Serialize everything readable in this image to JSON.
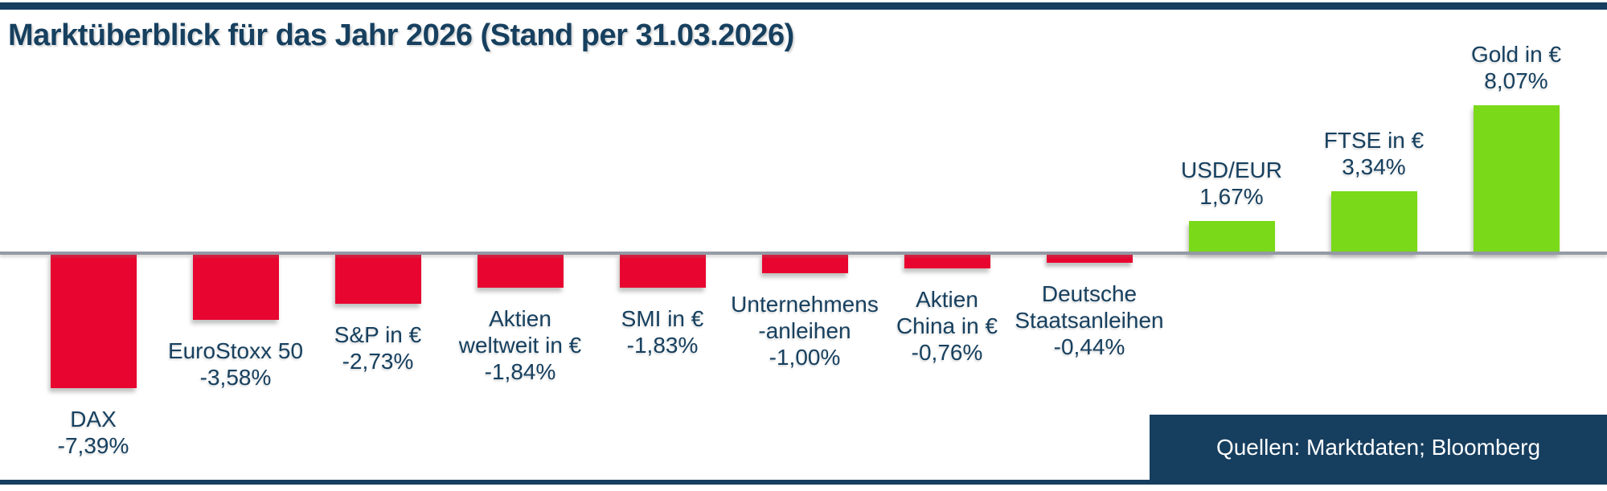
{
  "page": {
    "title": "Marktüberblick für das Jahr 2026 (Stand per 31.03.2026)",
    "source_label": "Quellen: Marktdaten; Bloomberg"
  },
  "colors": {
    "navy": "#17405F",
    "rule_navy": "#163E5F",
    "negative_red": "#E8052F",
    "positive_green": "#7AD918",
    "baseline_gray": "#939AA4",
    "source_box_bg": "#163E5F",
    "source_text": "#FFFFFF",
    "background": "#FFFFFF"
  },
  "chart_data": {
    "type": "bar",
    "title": "Marktüberblick für das Jahr 2026 (Stand per 31.03.2026)",
    "unit": "percent",
    "categories": [
      "DAX",
      "EuroStoxx 50",
      "S&P in €",
      "Aktien weltweit in €",
      "SMI in €",
      "Unternehmens-anleihen",
      "Aktien China in €",
      "Deutsche Staatsanleihen",
      "USD/EUR",
      "FTSE in €",
      "Gold in €"
    ],
    "values": [
      -7.39,
      -3.58,
      -2.73,
      -1.84,
      -1.83,
      -1.0,
      -0.76,
      -0.44,
      1.67,
      3.34,
      8.07
    ],
    "value_labels": [
      "-7,39%",
      "-3,58%",
      "-2,73%",
      "-1,84%",
      "-1,83%",
      "-1,00%",
      "-0,76%",
      "-0,44%",
      "1,67%",
      "3,34%",
      "8,07%"
    ],
    "name_lines": [
      [
        "DAX"
      ],
      [
        "EuroStoxx 50"
      ],
      [
        "S&P in €"
      ],
      [
        "Aktien",
        "weltweit in €"
      ],
      [
        "SMI in €"
      ],
      [
        "Unternehmens",
        "-anleihen"
      ],
      [
        "Aktien",
        "China in €"
      ],
      [
        "Deutsche",
        "Staatsanleihen"
      ],
      [
        "USD/EUR"
      ],
      [
        "FTSE in €"
      ],
      [
        "Gold in €"
      ]
    ],
    "negative_color": "#E8052F",
    "positive_color": "#7AD918",
    "baseline_value": 0,
    "ylim": [
      -9,
      9
    ],
    "y_axis_visible": false,
    "gridlines": false,
    "legend": false,
    "label_position": "outside-end",
    "source": "Quellen: Marktdaten; Bloomberg"
  }
}
